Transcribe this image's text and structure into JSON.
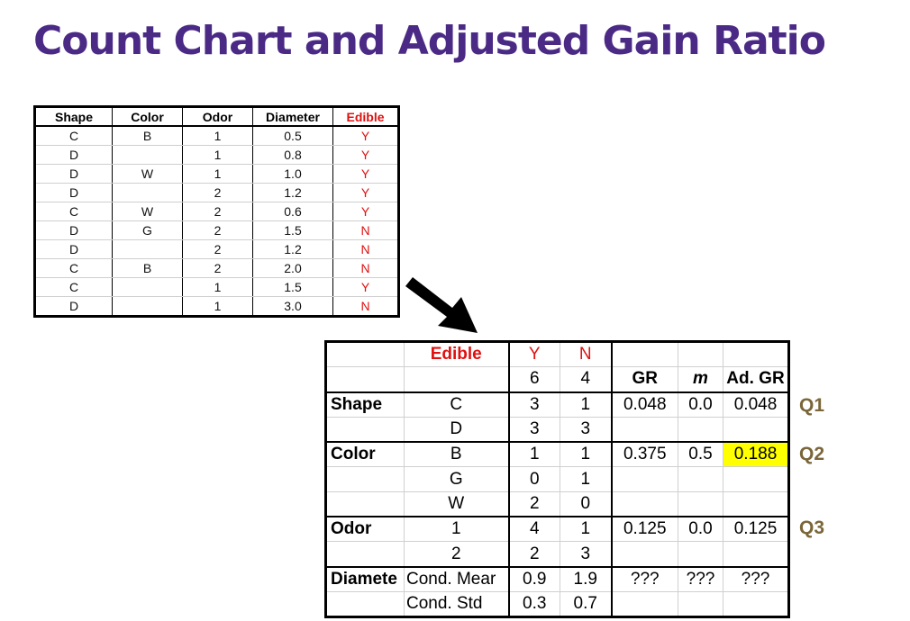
{
  "title": "Count Chart and Adjusted Gain Ratio",
  "data_table": {
    "headers": [
      "Shape",
      "Color",
      "Odor",
      "Diameter",
      "Edible"
    ],
    "rows": [
      [
        "C",
        "B",
        "1",
        "0.5",
        "Y"
      ],
      [
        "D",
        "",
        "1",
        "0.8",
        "Y"
      ],
      [
        "D",
        "W",
        "1",
        "1.0",
        "Y"
      ],
      [
        "D",
        "",
        "2",
        "1.2",
        "Y"
      ],
      [
        "C",
        "W",
        "2",
        "0.6",
        "Y"
      ],
      [
        "D",
        "G",
        "2",
        "1.5",
        "N"
      ],
      [
        "D",
        "",
        "2",
        "1.2",
        "N"
      ],
      [
        "C",
        "B",
        "2",
        "2.0",
        "N"
      ],
      [
        "C",
        "",
        "1",
        "1.5",
        "Y"
      ],
      [
        "D",
        "",
        "1",
        "3.0",
        "N"
      ]
    ]
  },
  "count_chart": {
    "header": {
      "edible": "Edible",
      "y": "Y",
      "n": "N"
    },
    "totals": {
      "y": "6",
      "n": "4",
      "gr": "GR",
      "m": "m",
      "adgr": "Ad. GR"
    },
    "rows": [
      {
        "attr": "Shape",
        "value": "C",
        "y": "3",
        "n": "1",
        "gr": "0.048",
        "m": "0.0",
        "adgr": "0.048"
      },
      {
        "attr": "",
        "value": "D",
        "y": "3",
        "n": "3",
        "gr": "",
        "m": "",
        "adgr": ""
      },
      {
        "attr": "Color",
        "value": "B",
        "y": "1",
        "n": "1",
        "gr": "0.375",
        "m": "0.5",
        "adgr": "0.188"
      },
      {
        "attr": "",
        "value": "G",
        "y": "0",
        "n": "1",
        "gr": "",
        "m": "",
        "adgr": ""
      },
      {
        "attr": "",
        "value": "W",
        "y": "2",
        "n": "0",
        "gr": "",
        "m": "",
        "adgr": ""
      },
      {
        "attr": "Odor",
        "value": "1",
        "y": "4",
        "n": "1",
        "gr": "0.125",
        "m": "0.0",
        "adgr": "0.125"
      },
      {
        "attr": "",
        "value": "2",
        "y": "2",
        "n": "3",
        "gr": "",
        "m": "",
        "adgr": ""
      },
      {
        "attr": "Diamete",
        "value": "Cond. Mear",
        "y": "0.9",
        "n": "1.9",
        "gr": "???",
        "m": "???",
        "adgr": "???"
      },
      {
        "attr": "",
        "value": "Cond. Std",
        "y": "0.3",
        "n": "0.7",
        "gr": "",
        "m": "",
        "adgr": ""
      }
    ]
  },
  "q_labels": [
    "Q1",
    "Q2",
    "Q3"
  ],
  "colors": {
    "title": "#4b2a86",
    "edible_red": "#e01010",
    "highlight": "#ffff00",
    "q_label": "#7a6638"
  }
}
